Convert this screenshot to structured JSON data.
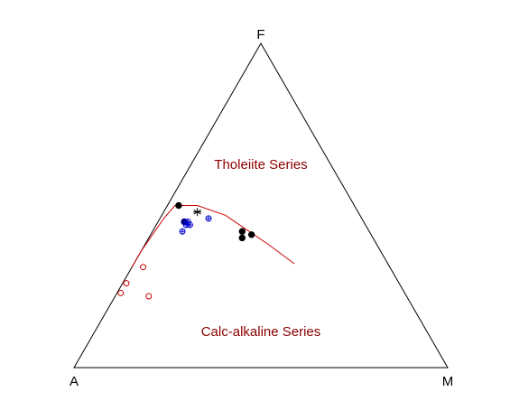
{
  "chart_data": {
    "type": "scatter",
    "subtype": "ternary-AFM",
    "vertices": {
      "top": "F",
      "left": "A",
      "right": "M"
    },
    "annotations": [
      {
        "text": "Tholeiite Series",
        "position": "upper-center",
        "color": "#8b0000"
      },
      {
        "text": "Calc-alkaline Series",
        "position": "lower-center",
        "color": "#8b0000"
      }
    ],
    "boundary_line": {
      "color": "#cc0000",
      "points": [
        {
          "A": 0.69,
          "F": 0.31,
          "M": 0.0
        },
        {
          "A": 0.64,
          "F": 0.36,
          "M": 0.0
        },
        {
          "A": 0.53,
          "F": 0.46,
          "M": 0.01
        },
        {
          "A": 0.48,
          "F": 0.5,
          "M": 0.02
        },
        {
          "A": 0.42,
          "F": 0.5,
          "M": 0.08
        },
        {
          "A": 0.36,
          "F": 0.47,
          "M": 0.17
        },
        {
          "A": 0.29,
          "F": 0.38,
          "M": 0.33
        },
        {
          "A": 0.25,
          "F": 0.32,
          "M": 0.43
        }
      ]
    },
    "series": [
      {
        "marker": "open-circle",
        "color": "#cc0000",
        "points": [
          {
            "A": 0.66,
            "F": 0.31,
            "M": 0.03
          },
          {
            "A": 0.73,
            "F": 0.26,
            "M": 0.01
          },
          {
            "A": 0.76,
            "F": 0.23,
            "M": 0.01
          },
          {
            "A": 0.69,
            "F": 0.22,
            "M": 0.09
          }
        ]
      },
      {
        "marker": "filled-circle",
        "color": "#000000",
        "points": [
          {
            "A": 0.47,
            "F": 0.5,
            "M": 0.03
          },
          {
            "A": 0.48,
            "F": 0.45,
            "M": 0.07
          },
          {
            "A": 0.34,
            "F": 0.42,
            "M": 0.24
          },
          {
            "A": 0.35,
            "F": 0.4,
            "M": 0.25
          },
          {
            "A": 0.32,
            "F": 0.41,
            "M": 0.27
          }
        ]
      },
      {
        "marker": "circled-plus",
        "color": "#0000cc",
        "points": [
          {
            "A": 0.48,
            "F": 0.45,
            "M": 0.07
          },
          {
            "A": 0.48,
            "F": 0.44,
            "M": 0.08
          },
          {
            "A": 0.47,
            "F": 0.44,
            "M": 0.09
          },
          {
            "A": 0.47,
            "F": 0.45,
            "M": 0.08
          },
          {
            "A": 0.5,
            "F": 0.42,
            "M": 0.08
          },
          {
            "A": 0.41,
            "F": 0.46,
            "M": 0.13
          }
        ]
      },
      {
        "marker": "asterisk",
        "color": "#000000",
        "points": [
          {
            "A": 0.43,
            "F": 0.48,
            "M": 0.09
          }
        ]
      }
    ],
    "grid": false,
    "legend": "none"
  }
}
